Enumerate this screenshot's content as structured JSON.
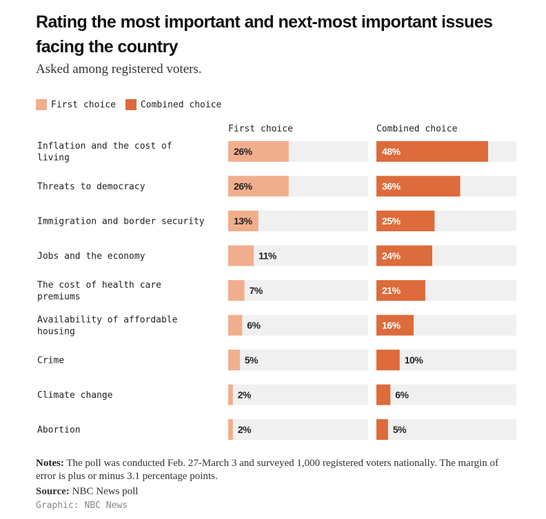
{
  "title": "Rating the most important and next-most important issues facing the country",
  "subtitle": "Asked among registered voters.",
  "legend": [
    {
      "label": "First choice",
      "color": "#f1ae8c"
    },
    {
      "label": "Combined choice",
      "color": "#dd6b3b"
    }
  ],
  "column_headers": {
    "first": "First choice",
    "combined": "Combined choice"
  },
  "chart_data": {
    "type": "bar",
    "categories": [
      "Inflation and the cost of living",
      "Threats to democracy",
      "Immigration and border security",
      "Jobs and the economy",
      "The cost of health care premiums",
      "Availability of affordable housing",
      "Crime",
      "Climate change",
      "Abortion"
    ],
    "category_lines": [
      [
        "Inflation and the cost of",
        "living"
      ],
      [
        "Threats to democracy"
      ],
      [
        "Immigration and border security"
      ],
      [
        "Jobs and the economy"
      ],
      [
        "The cost of health care",
        "premiums"
      ],
      [
        "Availability of affordable",
        "housing"
      ],
      [
        "Crime"
      ],
      [
        "Climate change"
      ],
      [
        "Abortion"
      ]
    ],
    "series": [
      {
        "name": "First choice",
        "values": [
          26,
          26,
          13,
          11,
          7,
          6,
          5,
          2,
          2
        ],
        "labels": [
          "26%",
          "26%",
          "13%",
          "11%",
          "7%",
          "6%",
          "5%",
          "2%",
          "2%"
        ],
        "color": "#f1ae8c"
      },
      {
        "name": "Combined choice",
        "values": [
          48,
          36,
          25,
          24,
          21,
          16,
          10,
          6,
          5
        ],
        "labels": [
          "48%",
          "36%",
          "25%",
          "24%",
          "21%",
          "16%",
          "10%",
          "6%",
          "5%"
        ],
        "color": "#dd6b3b"
      }
    ],
    "xlim": [
      0,
      60
    ],
    "track_color": "#f0f0f0"
  },
  "footer": {
    "notes_label": "Notes:",
    "notes_text": "The poll was conducted Feb. 27-March 3 and surveyed 1,000 registered voters nationally. The margin of error is plus or minus 3.1 percentage points.",
    "source_label": "Source:",
    "source_text": "NBC News poll",
    "graphic_credit": "Graphic: NBC News"
  }
}
